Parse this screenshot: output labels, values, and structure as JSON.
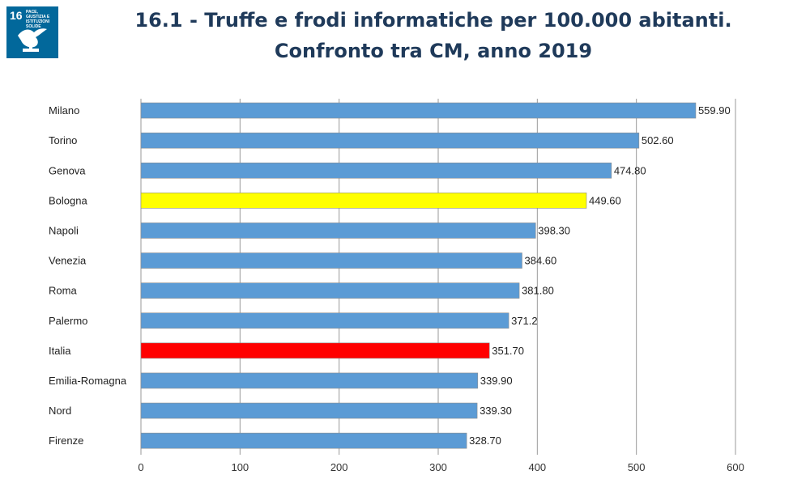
{
  "header": {
    "title_line1": "16.1 - Truffe e frodi informatiche per 100.000 abitanti.",
    "title_line2": "Confronto tra CM, anno 2019"
  },
  "logo": {
    "number": "16",
    "goal_text": "PACE, GIUSTIZIA E ISTITUZIONI SOLIDE",
    "icon": "dove-gavel-icon",
    "color": "#02689b"
  },
  "chart_data": {
    "type": "bar",
    "orientation": "horizontal",
    "categories": [
      "Milano",
      "Torino",
      "Genova",
      "Bologna",
      "Napoli",
      "Venezia",
      "Roma",
      "Palermo",
      "Italia",
      "Emilia-Romagna",
      "Nord",
      "Firenze"
    ],
    "values": [
      559.9,
      502.6,
      474.8,
      449.6,
      398.3,
      384.6,
      381.8,
      371.2,
      351.7,
      339.9,
      339.3,
      328.7
    ],
    "value_labels": [
      "559.90",
      "502.60",
      "474.80",
      "449.60",
      "398.30",
      "384.60",
      "381.80",
      "371.2",
      "351.70",
      "339.90",
      "339.30",
      "328.70"
    ],
    "colors": [
      "#5b9bd5",
      "#5b9bd5",
      "#5b9bd5",
      "#ffff00",
      "#5b9bd5",
      "#5b9bd5",
      "#5b9bd5",
      "#5b9bd5",
      "#ff0000",
      "#5b9bd5",
      "#5b9bd5",
      "#5b9bd5"
    ],
    "xlim": [
      0,
      600
    ],
    "xticks": [
      "0",
      "100",
      "200",
      "300",
      "400",
      "500",
      "600"
    ],
    "grid": true,
    "title": "",
    "xlabel": "",
    "ylabel": ""
  }
}
